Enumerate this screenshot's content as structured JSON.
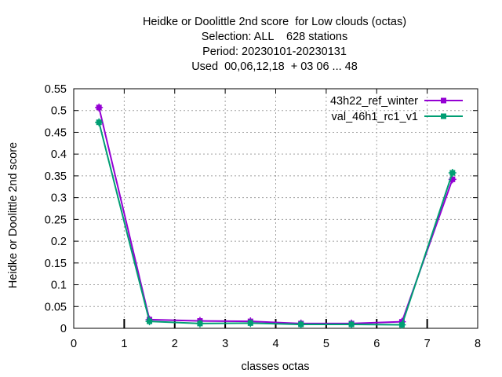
{
  "chart_data": {
    "type": "line",
    "title_lines": [
      "Heidke or Doolittle 2nd score  for Low clouds (octas)",
      "Selection: ALL    628 stations",
      "Period: 20230101-20230131",
      "Used  00,06,12,18  + 03 06 ... 48"
    ],
    "xlabel": "classes octas",
    "ylabel": "Heidke or Doolittle 2nd score",
    "xlim": [
      0,
      8
    ],
    "ylim": [
      0,
      0.55
    ],
    "xticks": [
      0,
      1,
      2,
      3,
      4,
      5,
      6,
      7,
      8
    ],
    "yticks": [
      0,
      0.05,
      0.1,
      0.15,
      0.2,
      0.25,
      0.3,
      0.35,
      0.4,
      0.45,
      0.5,
      0.55
    ],
    "xtick_labels": [
      "0",
      "1",
      "2",
      "3",
      "4",
      "5",
      "6",
      "7",
      "8"
    ],
    "ytick_labels": [
      "0",
      "0.05",
      "0.1",
      "0.15",
      "0.2",
      "0.25",
      "0.3",
      "0.35",
      "0.4",
      "0.45",
      "0.5",
      "0.55"
    ],
    "grid": true,
    "legend_position": "top-right",
    "x": [
      0.5,
      1.5,
      2.5,
      3.5,
      4.5,
      5.5,
      6.5,
      7.5
    ],
    "series": [
      {
        "name": "43h22_ref_winter",
        "color": "#9400d3",
        "values": [
          0.507,
          0.02,
          0.017,
          0.016,
          0.011,
          0.011,
          0.015,
          0.342
        ]
      },
      {
        "name": "val_46h1_rc1_v1",
        "color": "#009e73",
        "values": [
          0.473,
          0.016,
          0.011,
          0.012,
          0.009,
          0.009,
          0.008,
          0.357
        ]
      }
    ]
  }
}
